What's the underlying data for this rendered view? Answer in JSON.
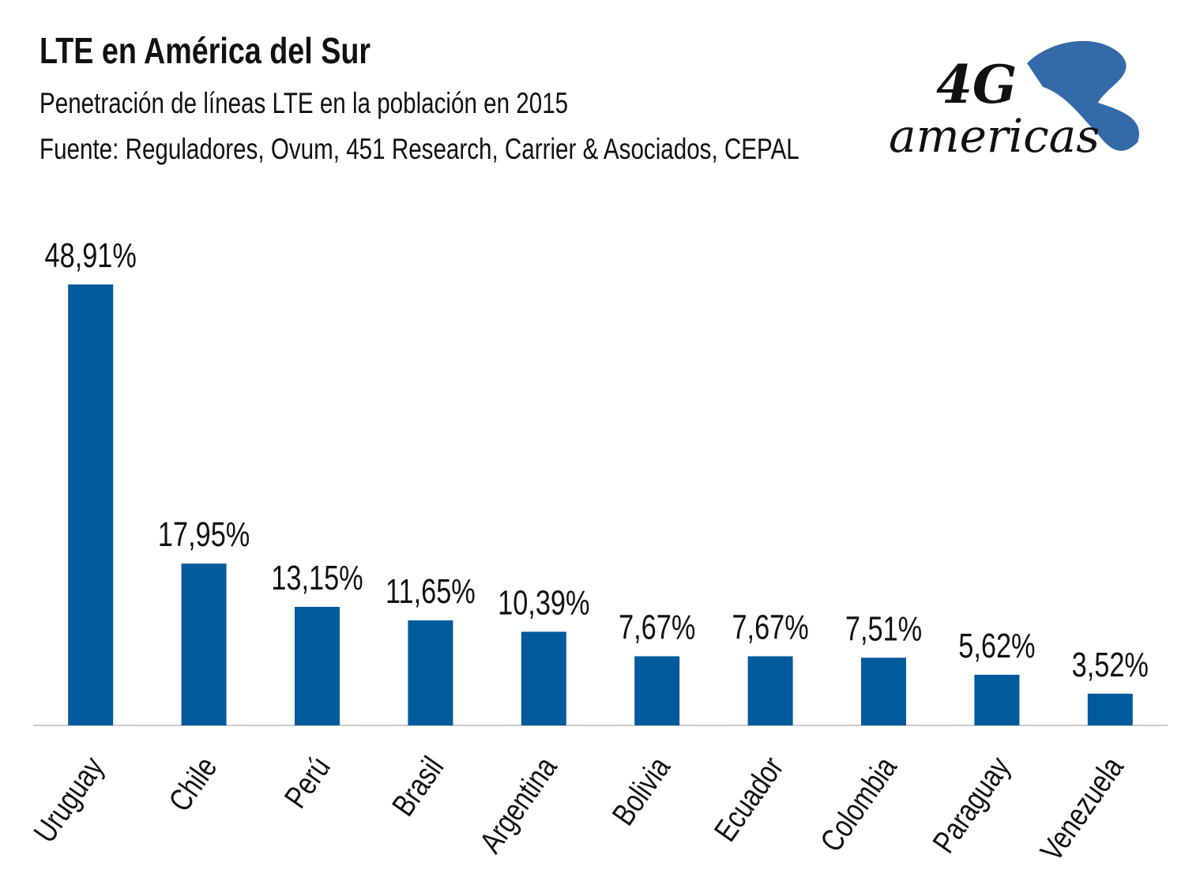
{
  "chart_data": {
    "type": "bar",
    "title": "LTE en América del Sur",
    "subtitle": "Penetración de líneas LTE en la población en 2015",
    "source": "Fuente: Reguladores, Ovum, 451 Research, Carrier & Asociados, CEPAL",
    "logo": {
      "mark": "4G",
      "name": "americas"
    },
    "categories": [
      "Uruguay",
      "Chile",
      "Perú",
      "Brasil",
      "Argentina",
      "Bolivia",
      "Ecuador",
      "Colombia",
      "Paraguay",
      "Venezuela"
    ],
    "values": [
      48.91,
      17.95,
      13.15,
      11.65,
      10.39,
      7.67,
      7.67,
      7.51,
      5.62,
      3.52
    ],
    "value_labels": [
      "48,91%",
      "17,95%",
      "13,15%",
      "11,65%",
      "10,39%",
      "7,67%",
      "7,67%",
      "7,51%",
      "5,62%",
      "3,52%"
    ],
    "color": "#005a9c"
  }
}
